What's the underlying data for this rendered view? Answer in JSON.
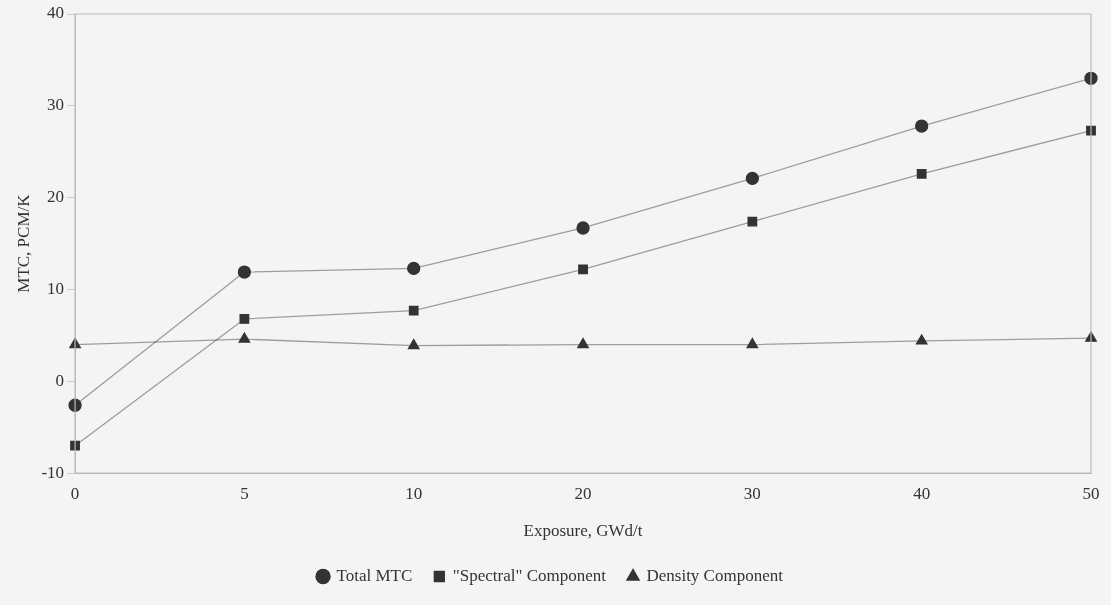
{
  "chart_data": {
    "type": "line",
    "xlabel": "Exposure, GWd/t",
    "ylabel": "MTC, PCM/K",
    "categories": [
      "0",
      "5",
      "10",
      "20",
      "30",
      "40",
      "50"
    ],
    "series": [
      {
        "name": "Total MTC",
        "color": "#333333",
        "marker": "circle",
        "values": [
          -2.6,
          11.9,
          12.3,
          16.7,
          22.1,
          27.8,
          33.0
        ]
      },
      {
        "name": "\"Spectral\" Component",
        "color": "#333333",
        "marker": "square",
        "values": [
          -7.0,
          6.8,
          7.7,
          12.2,
          17.4,
          22.6,
          27.3
        ]
      },
      {
        "name": "Density Component",
        "color": "#333333",
        "marker": "triangle",
        "values": [
          4.0,
          4.6,
          3.9,
          4.0,
          4.0,
          4.4,
          4.7
        ]
      }
    ],
    "ylim": [
      -10,
      40
    ],
    "yticks": [
      -10,
      0,
      10,
      20,
      30,
      40
    ],
    "grid": false,
    "legend": "bottom",
    "line_style": "solid"
  }
}
